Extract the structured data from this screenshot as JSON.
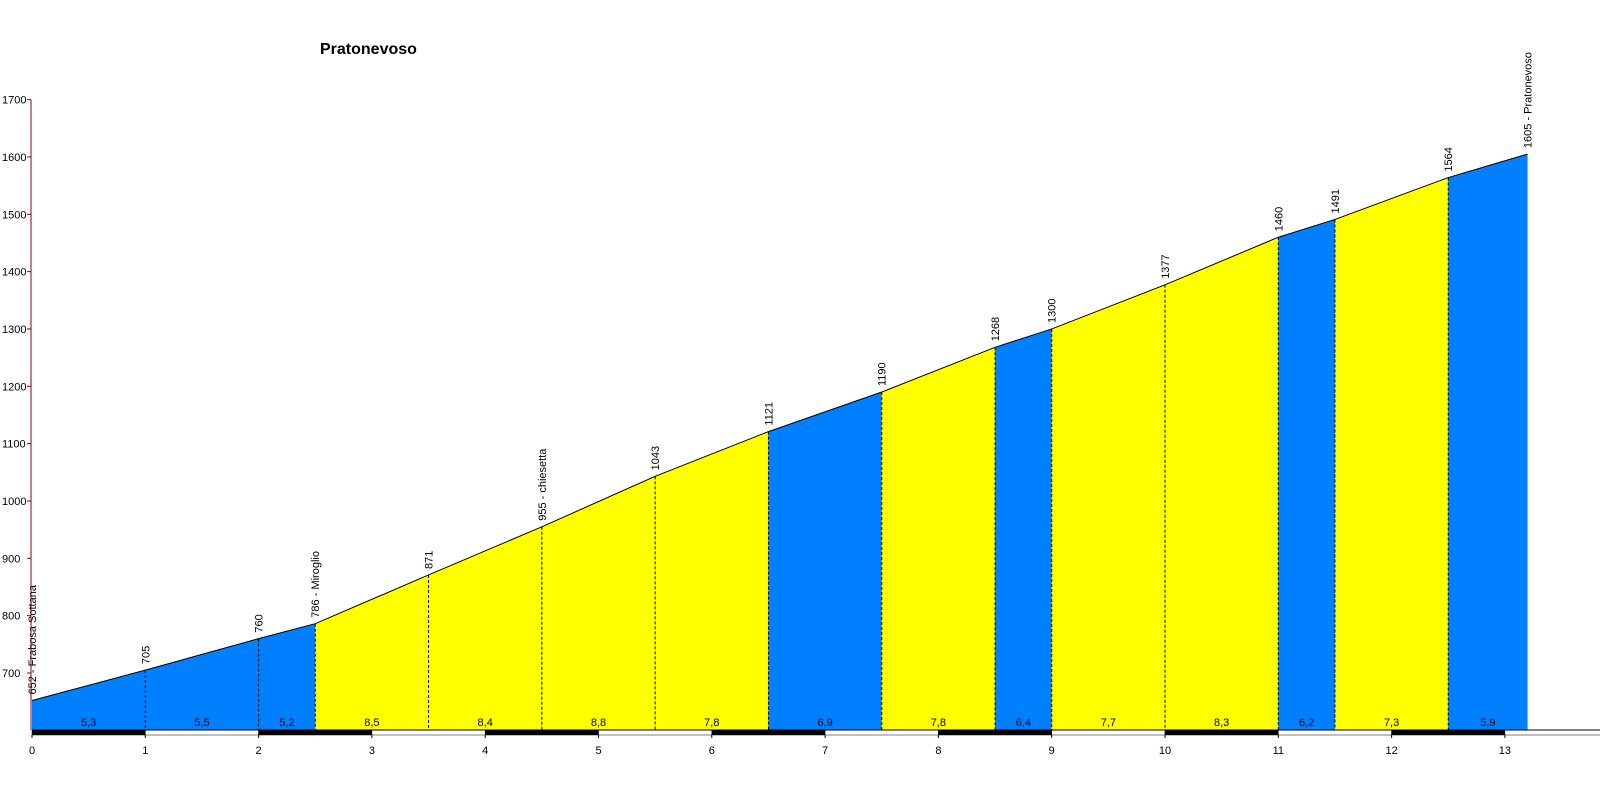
{
  "chart_data": {
    "type": "area",
    "title": "Pratonevoso",
    "xlabel": "",
    "ylabel": "",
    "xlim": [
      0,
      13.2
    ],
    "ylim": [
      610,
      1700
    ],
    "grid": false,
    "colors": {
      "blue": "#0080ff",
      "yellow": "#ffff00",
      "axis": "#8b0000",
      "line": "#000000"
    },
    "x_ticks": [
      0,
      1,
      2,
      3,
      4,
      5,
      6,
      7,
      8,
      9,
      10,
      11,
      12,
      13
    ],
    "x_tick_labels": [
      "0",
      "1",
      "2",
      "3",
      "4",
      "5",
      "6",
      "7",
      "8",
      "9",
      "10",
      "11",
      "12",
      "13"
    ],
    "y_ticks": [
      700,
      800,
      900,
      1000,
      1100,
      1200,
      1300,
      1400,
      1500,
      1600,
      1700
    ],
    "y_tick_labels": [
      "700",
      "800",
      "900",
      "1000",
      "1100",
      "1200",
      "1300",
      "1400",
      "1500",
      "1600",
      "1700"
    ],
    "points": [
      {
        "x": 0,
        "y": 652,
        "label": "652 - Frabosa Sottana"
      },
      {
        "x": 1,
        "y": 705,
        "label": "705"
      },
      {
        "x": 2,
        "y": 760,
        "label": "760"
      },
      {
        "x": 2.5,
        "y": 786,
        "label": "786 - Miroglio"
      },
      {
        "x": 3.5,
        "y": 871,
        "label": "871"
      },
      {
        "x": 4.5,
        "y": 955,
        "label": "955 - chiesetta"
      },
      {
        "x": 5.5,
        "y": 1043,
        "label": "1043"
      },
      {
        "x": 6.5,
        "y": 1121,
        "label": "1121"
      },
      {
        "x": 7.5,
        "y": 1190,
        "label": "1190"
      },
      {
        "x": 8.5,
        "y": 1268,
        "label": "1268"
      },
      {
        "x": 9,
        "y": 1300,
        "label": "1300"
      },
      {
        "x": 10,
        "y": 1377,
        "label": "1377"
      },
      {
        "x": 11,
        "y": 1460,
        "label": "1460"
      },
      {
        "x": 11.5,
        "y": 1491,
        "label": "1491"
      },
      {
        "x": 12.5,
        "y": 1564,
        "label": "1564"
      },
      {
        "x": 13.2,
        "y": 1605,
        "label": "1605 - Pratonevoso"
      }
    ],
    "segments": [
      {
        "from": 0,
        "to": 1,
        "gradient": "5,3",
        "color": "blue"
      },
      {
        "from": 1,
        "to": 2,
        "gradient": "5,5",
        "color": "blue"
      },
      {
        "from": 2,
        "to": 2.5,
        "gradient": "5,2",
        "color": "blue"
      },
      {
        "from": 2.5,
        "to": 3.5,
        "gradient": "8,5",
        "color": "yellow"
      },
      {
        "from": 3.5,
        "to": 4.5,
        "gradient": "8,4",
        "color": "yellow"
      },
      {
        "from": 4.5,
        "to": 5.5,
        "gradient": "8,8",
        "color": "yellow"
      },
      {
        "from": 5.5,
        "to": 6.5,
        "gradient": "7,8",
        "color": "yellow"
      },
      {
        "from": 6.5,
        "to": 7.5,
        "gradient": "6,9",
        "color": "blue"
      },
      {
        "from": 7.5,
        "to": 8.5,
        "gradient": "7,8",
        "color": "yellow"
      },
      {
        "from": 8.5,
        "to": 9,
        "gradient": "6,4",
        "color": "blue"
      },
      {
        "from": 9,
        "to": 10,
        "gradient": "7,7",
        "color": "yellow"
      },
      {
        "from": 10,
        "to": 11,
        "gradient": "8,3",
        "color": "yellow"
      },
      {
        "from": 11,
        "to": 11.5,
        "gradient": "6,2",
        "color": "blue"
      },
      {
        "from": 11.5,
        "to": 12.5,
        "gradient": "7,3",
        "color": "yellow"
      },
      {
        "from": 12.5,
        "to": 13.2,
        "gradient": "5,9",
        "color": "blue"
      }
    ]
  }
}
